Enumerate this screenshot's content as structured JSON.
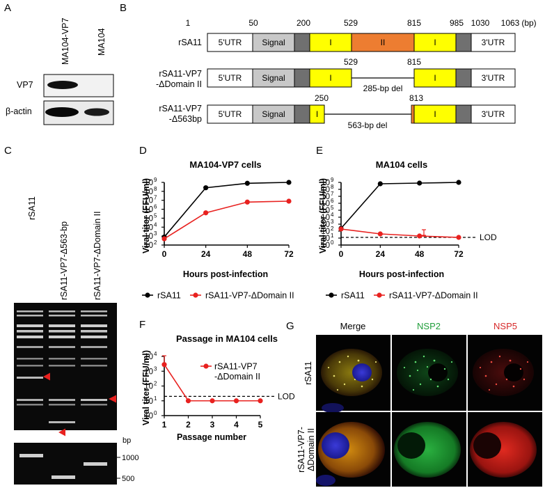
{
  "panels": {
    "A": {
      "letter": "A",
      "lanes": [
        "MA104-VP7",
        "MA104"
      ],
      "rows": [
        "VP7",
        "β-actin"
      ]
    },
    "B": {
      "letter": "B",
      "unit": "(bp)",
      "positions_top": [
        "1",
        "50",
        "200",
        "529",
        "815",
        "985",
        "1030",
        "1063"
      ],
      "constructs": [
        {
          "name_lines": [
            "rSA11"
          ],
          "segments": [
            "5'UTR",
            "Signal",
            "I",
            "II",
            "I",
            "3'UTR"
          ]
        },
        {
          "name_lines": [
            "rSA11-VP7",
            "-ΔDomain II"
          ],
          "segments": [
            "5'UTR",
            "Signal",
            "I",
            "I",
            "3'UTR"
          ],
          "pos_left": "529",
          "pos_right": "815",
          "del_label": "285-bp del"
        },
        {
          "name_lines": [
            "rSA11-VP7",
            "-Δ563bp"
          ],
          "segments": [
            "5'UTR",
            "Signal",
            "I",
            "I",
            "3'UTR"
          ],
          "pos_left": "250",
          "pos_right": "813",
          "del_label": "563-bp del"
        }
      ]
    },
    "C": {
      "letter": "C",
      "lanes": [
        "rSA11",
        "rSA11-VP7-Δ563-bp",
        "rSA11-VP7-ΔDomain II"
      ],
      "bp_label": "bp",
      "markers": [
        "1000",
        "500"
      ]
    },
    "G": {
      "letter": "G",
      "columns": [
        "Merge",
        "NSP2",
        "NSP5"
      ],
      "rows": [
        "rSA11",
        "rSA11-VP7-ΔDomain II"
      ],
      "colors": {
        "nsp2": "#1f9e3a",
        "nsp5": "#d62728"
      }
    }
  },
  "chart_data": [
    {
      "id": "D",
      "letter": "D",
      "type": "line",
      "title": "MA104-VP7 cells",
      "xlabel": "Hours post-infection",
      "ylabel": "Viral titer (FFU/ml)",
      "x": [
        0,
        24,
        48,
        72
      ],
      "xticks": [
        "0",
        "24",
        "48",
        "72"
      ],
      "ylim_log10": [
        2,
        9
      ],
      "yscale": "log",
      "ytick_exponents": [
        "2",
        "3",
        "4",
        "5",
        "6",
        "7",
        "8",
        "9"
      ],
      "series": [
        {
          "name": "rSA11",
          "color": "#000000",
          "log10_values": [
            2.9,
            8.4,
            8.9,
            9.0
          ]
        },
        {
          "name": "rSA11-VP7-ΔDomain II",
          "color": "#e8211f",
          "log10_values": [
            2.7,
            5.6,
            6.8,
            6.9
          ]
        }
      ],
      "legend_position": "bottom"
    },
    {
      "id": "E",
      "letter": "E",
      "type": "line",
      "title": "MA104 cells",
      "xlabel": "Hours post-infection",
      "ylabel": "Viral titer (FFU/ml)",
      "x": [
        0,
        24,
        48,
        72
      ],
      "xticks": [
        "0",
        "24",
        "48",
        "72"
      ],
      "ylim_log10": [
        0,
        9
      ],
      "yscale": "log",
      "ytick_exponents": [
        "0",
        "1",
        "2",
        "3",
        "4",
        "5",
        "6",
        "7",
        "8",
        "9"
      ],
      "lod_log10": 1.1,
      "lod_label": "LOD",
      "series": [
        {
          "name": "rSA11",
          "color": "#000000",
          "log10_values": [
            2.4,
            8.8,
            8.9,
            9.0
          ]
        },
        {
          "name": "rSA11-VP7-ΔDomain II",
          "color": "#e8211f",
          "log10_values": [
            2.3,
            1.6,
            1.3,
            1.1
          ]
        }
      ],
      "legend_position": "bottom"
    },
    {
      "id": "F",
      "letter": "F",
      "type": "line",
      "title": "Passage in MA104 cells",
      "xlabel": "Passage number",
      "ylabel": "Viral titer (FFU/ml)",
      "x": [
        1,
        2,
        3,
        4,
        5
      ],
      "xticks": [
        "1",
        "2",
        "3",
        "4",
        "5"
      ],
      "ylim_log10": [
        0,
        4
      ],
      "yscale": "log",
      "ytick_exponents": [
        "0",
        "1",
        "2",
        "3",
        "4"
      ],
      "lod_log10": 1.3,
      "lod_label": "LOD",
      "series": [
        {
          "name": "rSA11-VP7 -ΔDomain II",
          "name_lines": [
            "rSA11-VP7",
            "-ΔDomain II"
          ],
          "color": "#e8211f",
          "log10_values": [
            3.45,
            1.0,
            1.0,
            1.0,
            1.0
          ]
        }
      ],
      "legend_position": "top-right"
    }
  ]
}
